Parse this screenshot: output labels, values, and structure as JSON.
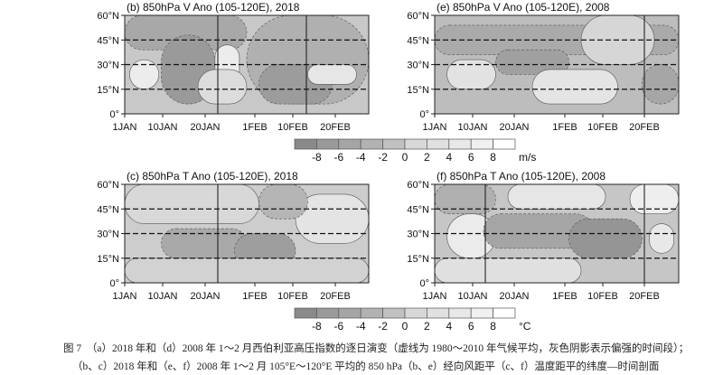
{
  "panels": [
    {
      "id": "b",
      "title": "(b) 850hPa V Ano (105-120E), 2018",
      "variable": "V",
      "year": "2018"
    },
    {
      "id": "e",
      "title": "(e) 850hPa V Ano (105-120E), 2008",
      "variable": "V",
      "year": "2008"
    },
    {
      "id": "c",
      "title": "(c) 850hPa T Ano (105-120E), 2018",
      "variable": "T",
      "year": "2018"
    },
    {
      "id": "f",
      "title": "(f) 850hPa T Ano (105-120E), 2008",
      "variable": "T",
      "year": "2008"
    }
  ],
  "y_ticks": [
    "60°N",
    "45°N",
    "30°N",
    "15°N",
    "0°"
  ],
  "x_ticks": [
    "1JAN",
    "10JAN",
    "20JAN",
    "1FEB",
    "10FEB",
    "20FEB"
  ],
  "colorbars": [
    {
      "labels": [
        "-8",
        "-6",
        "-4",
        "-2",
        "0",
        "2",
        "4",
        "6",
        "8"
      ],
      "unit": "m/s",
      "colors": [
        "#8a8a8a",
        "#9a9a9a",
        "#a5a5a5",
        "#b2b2b2",
        "#c0c0c0",
        "#d8d8d8",
        "#e0e0e0",
        "#e8e8e8",
        "#f0f0f0",
        "#ffffff"
      ]
    },
    {
      "labels": [
        "-8",
        "-6",
        "-4",
        "-2",
        "0",
        "2",
        "4",
        "6",
        "8"
      ],
      "unit": "°C",
      "colors": [
        "#8a8a8a",
        "#9a9a9a",
        "#a5a5a5",
        "#b2b2b2",
        "#c0c0c0",
        "#d8d8d8",
        "#e0e0e0",
        "#e8e8e8",
        "#f0f0f0",
        "#ffffff"
      ]
    }
  ],
  "caption": {
    "line1": "图 7　（a）2018 年和（d）2008 年 1～2 月西伯利亚高压指数的逐日演变（虚线为 1980～2010 年气候平均，灰色阴影表示偏强的时间段）；",
    "line2": "（b、c）2018 年和（e、f）2008 年 1～2 月 105°E～120°E 平均的 850 hPa（b、e）经向风距平（c、f）温度距平的纬度—时间剖面"
  }
}
